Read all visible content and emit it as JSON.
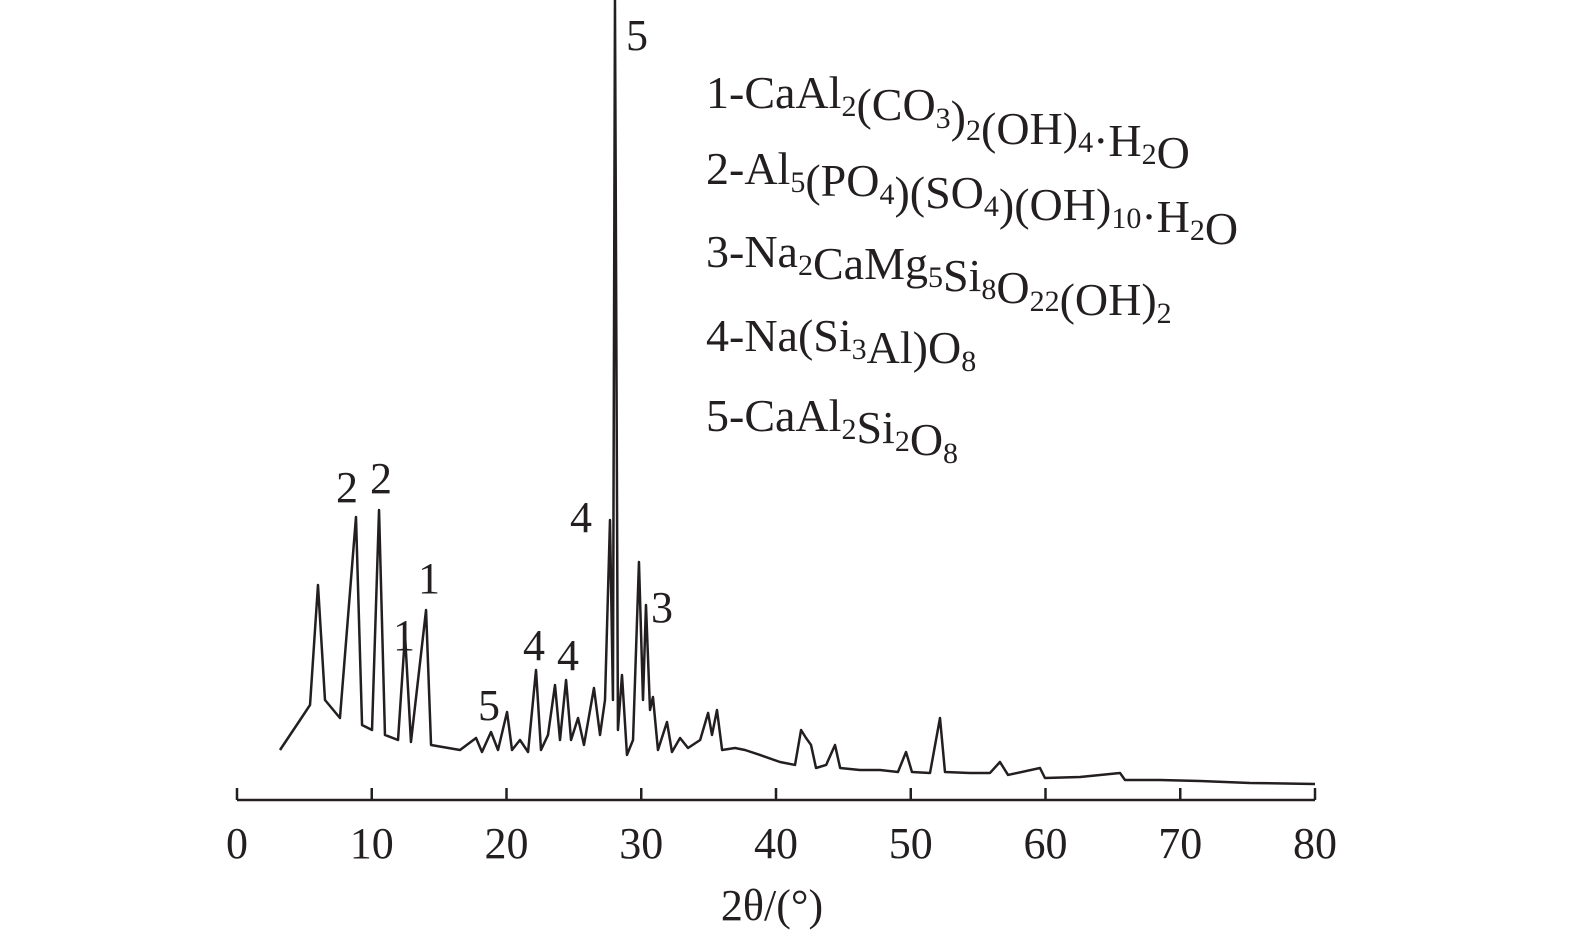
{
  "chart_data": {
    "type": "line",
    "xlabel": "2θ/(°)",
    "xlim": [
      0,
      80
    ],
    "xticks": [
      0,
      10,
      20,
      30,
      40,
      50,
      60,
      70,
      80
    ],
    "ylim": [
      0,
      100
    ],
    "series": [
      {
        "color": "#231f20",
        "x": [
          3.19,
          4.68,
          5.42,
          6.01,
          6.53,
          7.64,
          8.83,
          9.28,
          10.02,
          10.54,
          10.98,
          11.95,
          12.47,
          12.91,
          14.03,
          14.4,
          16.55,
          17.74,
          18.18,
          18.85,
          19.37,
          20.04,
          20.41,
          21.0,
          21.6,
          22.19,
          22.56,
          23.08,
          23.6,
          23.97,
          24.42,
          24.79,
          25.31,
          25.75,
          26.49,
          26.94,
          27.31,
          27.68,
          27.9,
          28.05,
          28.27,
          28.57,
          28.94,
          29.39,
          29.83,
          30.13,
          30.35,
          30.65,
          30.87,
          31.24,
          31.91,
          32.28,
          32.88,
          33.47,
          34.37,
          34.96,
          35.25,
          35.62,
          36.0,
          36.96,
          37.7,
          38.81,
          40.3,
          41.41,
          41.86,
          42.23,
          42.6,
          42.97,
          43.72,
          44.38,
          44.76,
          46.23,
          47.72,
          49.05,
          49.65,
          50.09,
          51.43,
          52.17,
          52.54,
          54.4,
          55.88,
          56.62,
          57.22,
          59.59,
          59.96,
          62.56,
          65.53,
          65.9,
          68.5,
          71.47,
          75.18,
          80.0
        ],
        "values": [
          6.25,
          10,
          11.88,
          26.88,
          12.5,
          10.25,
          35.38,
          9.38,
          8.75,
          36.25,
          8.13,
          7.5,
          20.63,
          7.25,
          23.75,
          6.88,
          6.25,
          7.75,
          6,
          8.5,
          6.25,
          11,
          6.25,
          7.5,
          6,
          16.25,
          6.25,
          8.13,
          14.38,
          7.5,
          15,
          7.5,
          10.25,
          6.88,
          14,
          8.13,
          12.5,
          35,
          12.5,
          100,
          8.75,
          15.63,
          5.63,
          7.5,
          29.75,
          12.5,
          24.38,
          11.25,
          12.88,
          6.25,
          9.75,
          6,
          7.75,
          6.5,
          7.5,
          10.88,
          8.13,
          11.25,
          6.25,
          6.5,
          6.25,
          5.63,
          4.75,
          4.38,
          8.75,
          7.75,
          6.88,
          4,
          4.38,
          6.88,
          4,
          3.75,
          3.75,
          3.5,
          6,
          3.5,
          3.38,
          10.25,
          3.5,
          3.38,
          3.38,
          4.75,
          3.13,
          4,
          2.75,
          2.88,
          3.38,
          2.5,
          2.5,
          2.38,
          2.13,
          2
        ]
      }
    ],
    "annotations": [
      "5",
      "2",
      "2",
      "1",
      "1",
      "5",
      "4",
      "4",
      "4",
      "3"
    ],
    "legend": [
      "1-CaAl2(CO3)2(OH)4·H2O",
      "2-Al5(PO4)(SO4)(OH)10·H2O",
      "3-Na2CaMg5Si8O22(OH)2",
      "4-Na(Si3Al)O8",
      "5-CaAl2Si2O8"
    ]
  }
}
